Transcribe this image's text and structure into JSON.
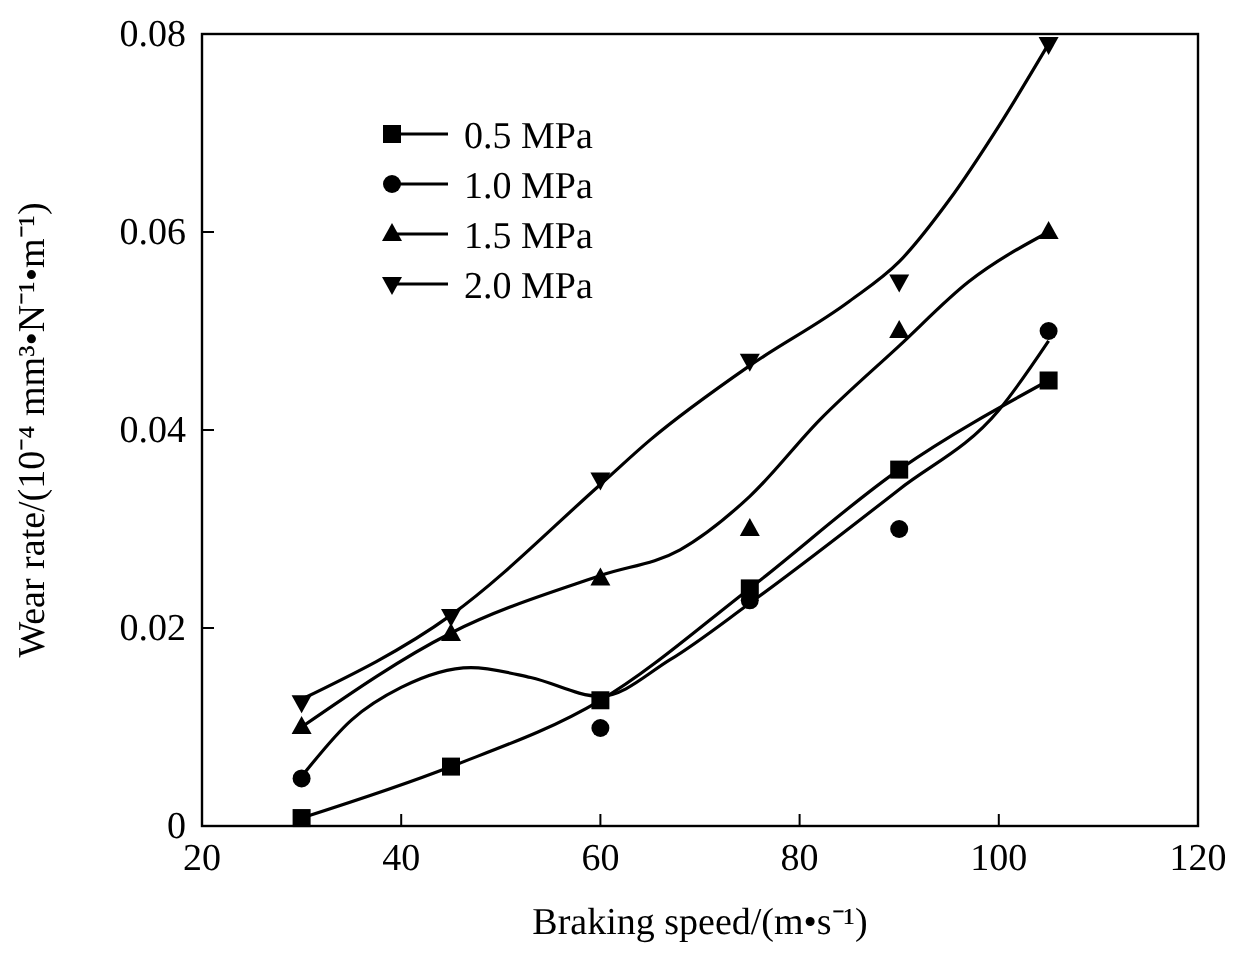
{
  "chart_data": {
    "type": "scatter",
    "xlabel": "Braking speed/(m•s⁻¹)",
    "ylabel": "Wear rate/(10⁻⁴ mm³•N⁻¹•m⁻¹)",
    "xlim": [
      20,
      120
    ],
    "xticks": [
      20,
      40,
      60,
      80,
      100,
      120
    ],
    "ylim": [
      0,
      0.08
    ],
    "yticks": [
      0,
      0.02,
      0.04,
      0.06,
      0.08
    ],
    "grid": false,
    "legend": "top left",
    "x": [
      30,
      45,
      60,
      75,
      90,
      105
    ],
    "series": [
      {
        "name": "0.5 MPa",
        "color": "#000000",
        "marker": "square",
        "values": [
          0.0008,
          0.006,
          0.0127,
          0.024,
          0.036,
          0.045
        ]
      },
      {
        "name": "1.0 MPa",
        "color": "#000000",
        "marker": "circle",
        "values": [
          0.0048,
          null,
          0.0099,
          0.0228,
          0.03,
          0.05
        ]
      },
      {
        "name": "1.5 MPa",
        "color": "#000000",
        "marker": "triangle",
        "values": [
          0.01,
          0.0194,
          0.025,
          0.03,
          0.05,
          0.06
        ]
      },
      {
        "name": "2.0 MPa",
        "color": "#000000",
        "marker": "triangle-down",
        "values": [
          0.0125,
          0.0212,
          0.035,
          0.047,
          0.055,
          0.079
        ]
      },
      {
        "type": "line",
        "color": "#000000",
        "line_style": "solid",
        "x": [
          30,
          45,
          60,
          75,
          90,
          105
        ],
        "values": [
          0.0008,
          0.006,
          0.0127,
          0.024,
          0.036,
          0.045
        ]
      },
      {
        "type": "line",
        "color": "#000000",
        "line_style": "solid",
        "x": [
          30,
          35,
          40,
          47,
          53,
          60,
          67,
          75,
          90,
          100,
          105
        ],
        "values": [
          0.005,
          0.0107,
          0.014,
          0.016,
          0.015,
          0.0131,
          0.0168,
          0.0225,
          0.034,
          0.042,
          0.049
        ]
      },
      {
        "type": "line",
        "color": "#000000",
        "line_style": "solid",
        "x": [
          30,
          45,
          60,
          68,
          75,
          82,
          90,
          97,
          105
        ],
        "values": [
          0.01,
          0.0195,
          0.0253,
          0.0279,
          0.0333,
          0.041,
          0.0485,
          0.055,
          0.06
        ]
      },
      {
        "type": "line",
        "color": "#000000",
        "line_style": "solid",
        "x": [
          30,
          45,
          60,
          65,
          75,
          85,
          90,
          95,
          100,
          105
        ],
        "values": [
          0.0128,
          0.0213,
          0.0345,
          0.039,
          0.0465,
          0.053,
          0.057,
          0.0632,
          0.0707,
          0.079
        ]
      }
    ]
  }
}
